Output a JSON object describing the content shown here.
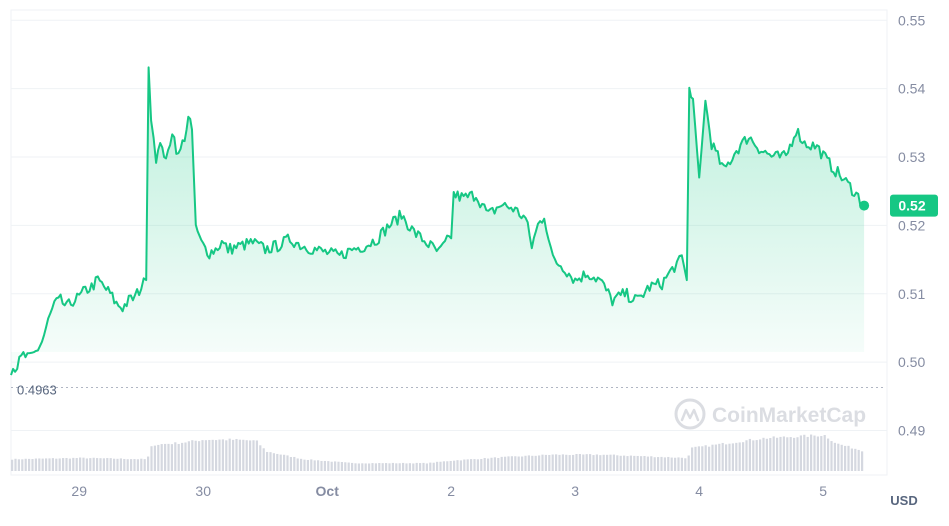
{
  "chart_data": {
    "type": "area",
    "currency_label": "USD",
    "watermark_text": "CoinMarketCap",
    "current_price_label": "0.52",
    "current_price": 0.5229,
    "open_price_label": "0.4963",
    "open_price": 0.4963,
    "ylim": [
      0.4835,
      0.5515
    ],
    "y_ticks": [
      {
        "value": 0.55,
        "label": "0.55"
      },
      {
        "value": 0.54,
        "label": "0.54"
      },
      {
        "value": 0.53,
        "label": "0.53"
      },
      {
        "value": 0.52,
        "label": "0.52"
      },
      {
        "value": 0.51,
        "label": "0.51"
      },
      {
        "value": 0.5,
        "label": "0.50"
      },
      {
        "value": 0.49,
        "label": "0.49"
      }
    ],
    "xlim": [
      -0.55,
      6.45
    ],
    "x_ticks": [
      {
        "value": 0,
        "label": "29"
      },
      {
        "value": 1,
        "label": "30"
      },
      {
        "value": 2,
        "label": "Oct"
      },
      {
        "value": 3,
        "label": "2"
      },
      {
        "value": 4,
        "label": "3"
      },
      {
        "value": 5,
        "label": "4"
      },
      {
        "value": 6,
        "label": "5"
      }
    ],
    "price_series": {
      "name": "",
      "points": [
        [
          -0.55,
          0.499
        ],
        [
          -0.5,
          0.4995
        ],
        [
          -0.45,
          0.501
        ],
        [
          -0.4,
          0.5005
        ],
        [
          -0.35,
          0.5015
        ],
        [
          -0.3,
          0.503
        ],
        [
          -0.25,
          0.506
        ],
        [
          -0.2,
          0.5085
        ],
        [
          -0.15,
          0.509
        ],
        [
          -0.1,
          0.508
        ],
        [
          -0.05,
          0.509
        ],
        [
          0.0,
          0.5095
        ],
        [
          0.05,
          0.5105
        ],
        [
          0.1,
          0.511
        ],
        [
          0.15,
          0.512
        ],
        [
          0.2,
          0.511
        ],
        [
          0.25,
          0.51
        ],
        [
          0.3,
          0.5085
        ],
        [
          0.35,
          0.508
        ],
        [
          0.4,
          0.509
        ],
        [
          0.45,
          0.5095
        ],
        [
          0.5,
          0.511
        ],
        [
          0.54,
          0.512
        ],
        [
          0.56,
          0.544
        ],
        [
          0.58,
          0.536
        ],
        [
          0.62,
          0.53
        ],
        [
          0.67,
          0.532
        ],
        [
          0.7,
          0.529
        ],
        [
          0.75,
          0.534
        ],
        [
          0.8,
          0.53
        ],
        [
          0.85,
          0.533
        ],
        [
          0.88,
          0.5355
        ],
        [
          0.91,
          0.534
        ],
        [
          0.94,
          0.52
        ],
        [
          0.97,
          0.518
        ],
        [
          1.0,
          0.517
        ],
        [
          1.05,
          0.516
        ],
        [
          1.1,
          0.5165
        ],
        [
          1.15,
          0.5175
        ],
        [
          1.2,
          0.5165
        ],
        [
          1.3,
          0.517
        ],
        [
          1.4,
          0.5175
        ],
        [
          1.5,
          0.5165
        ],
        [
          1.6,
          0.517
        ],
        [
          1.7,
          0.518
        ],
        [
          1.8,
          0.517
        ],
        [
          1.9,
          0.5165
        ],
        [
          2.0,
          0.516
        ],
        [
          2.1,
          0.5155
        ],
        [
          2.2,
          0.5165
        ],
        [
          2.3,
          0.517
        ],
        [
          2.4,
          0.518
        ],
        [
          2.5,
          0.52
        ],
        [
          2.6,
          0.5215
        ],
        [
          2.7,
          0.519
        ],
        [
          2.8,
          0.5175
        ],
        [
          2.9,
          0.516
        ],
        [
          3.0,
          0.5185
        ],
        [
          3.02,
          0.5245
        ],
        [
          3.1,
          0.524
        ],
        [
          3.2,
          0.5245
        ],
        [
          3.3,
          0.5215
        ],
        [
          3.4,
          0.523
        ],
        [
          3.5,
          0.5225
        ],
        [
          3.6,
          0.521
        ],
        [
          3.65,
          0.517
        ],
        [
          3.7,
          0.52
        ],
        [
          3.75,
          0.5215
        ],
        [
          3.82,
          0.515
        ],
        [
          3.9,
          0.514
        ],
        [
          4.0,
          0.512
        ],
        [
          4.1,
          0.513
        ],
        [
          4.2,
          0.512
        ],
        [
          4.3,
          0.509
        ],
        [
          4.4,
          0.51
        ],
        [
          4.5,
          0.509
        ],
        [
          4.6,
          0.511
        ],
        [
          4.7,
          0.5115
        ],
        [
          4.8,
          0.514
        ],
        [
          4.86,
          0.515
        ],
        [
          4.9,
          0.512
        ],
        [
          4.92,
          0.54
        ],
        [
          4.95,
          0.5385
        ],
        [
          5.0,
          0.527
        ],
        [
          5.05,
          0.538
        ],
        [
          5.1,
          0.532
        ],
        [
          5.2,
          0.528
        ],
        [
          5.3,
          0.531
        ],
        [
          5.4,
          0.533
        ],
        [
          5.5,
          0.531
        ],
        [
          5.6,
          0.53
        ],
        [
          5.7,
          0.53
        ],
        [
          5.78,
          0.534
        ],
        [
          5.85,
          0.532
        ],
        [
          5.95,
          0.5315
        ],
        [
          6.05,
          0.529
        ],
        [
          6.15,
          0.527
        ],
        [
          6.25,
          0.525
        ],
        [
          6.33,
          0.5229
        ]
      ]
    },
    "volume_series": {
      "name": "",
      "points": [
        [
          -0.55,
          0.18
        ],
        [
          0.0,
          0.2
        ],
        [
          0.54,
          0.18
        ],
        [
          0.58,
          0.4
        ],
        [
          0.8,
          0.43
        ],
        [
          1.0,
          0.48
        ],
        [
          1.2,
          0.48
        ],
        [
          1.35,
          0.47
        ],
        [
          1.42,
          0.46
        ],
        [
          1.5,
          0.3
        ],
        [
          1.8,
          0.18
        ],
        [
          2.2,
          0.12
        ],
        [
          2.8,
          0.12
        ],
        [
          3.0,
          0.16
        ],
        [
          3.4,
          0.21
        ],
        [
          3.8,
          0.25
        ],
        [
          4.2,
          0.25
        ],
        [
          4.9,
          0.2
        ],
        [
          4.93,
          0.35
        ],
        [
          5.5,
          0.5
        ],
        [
          5.8,
          0.53
        ],
        [
          6.0,
          0.55
        ],
        [
          6.1,
          0.42
        ],
        [
          6.33,
          0.3
        ]
      ]
    },
    "colors": {
      "line": "#16c784",
      "area_top": "#16c784",
      "volume_bar": "#d5d8e0",
      "grid": "#eff2f5",
      "axis_text": "#858ca2",
      "open_text": "#58667e",
      "badge_bg": "#16c784",
      "badge_text": "#ffffff"
    }
  }
}
